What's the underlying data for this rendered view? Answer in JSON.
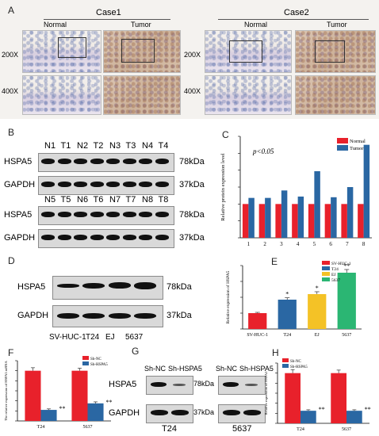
{
  "panelA": {
    "letter": "A",
    "case1": "Case1",
    "case2": "Case2",
    "normal": "Normal",
    "tumor": "Tumor",
    "mag200": "200X",
    "mag400": "400X"
  },
  "panelB": {
    "letter": "B",
    "row1_lanes": [
      "N1",
      "T1",
      "N2",
      "T2",
      "N3",
      "T3",
      "N4",
      "T4"
    ],
    "row2_lanes": [
      "N5",
      "T5",
      "N6",
      "T6",
      "N7",
      "T7",
      "N8",
      "T8"
    ],
    "hspa5": "HSPA5",
    "gapdh": "GAPDH",
    "kda78": "78kDa",
    "kda37": "37kDa"
  },
  "panelC": {
    "letter": "C"
  },
  "panelD": {
    "letter": "D",
    "hspa5": "HSPA5",
    "gapdh": "GAPDH",
    "kda78": "78kDa",
    "kda37": "37kDa",
    "lanes": [
      "SV-HUC-1",
      "T24",
      "EJ",
      "5637"
    ]
  },
  "panelE": {
    "letter": "E"
  },
  "panelF": {
    "letter": "F"
  },
  "panelG": {
    "letter": "G",
    "shnc": "Sh-NC",
    "shhspa5": "Sh-HSPA5",
    "hspa5": "HSPA5",
    "gapdh": "GAPDH",
    "kda78": "78kDa",
    "kda37": "37kDa",
    "t24": "T24",
    "c5637": "5637"
  },
  "panelH": {
    "letter": "H"
  },
  "chart_data": [
    {
      "id": "C",
      "type": "bar",
      "categories": [
        "1",
        "2",
        "3",
        "4",
        "5",
        "6",
        "7",
        "8"
      ],
      "series": [
        {
          "name": "Normal",
          "color": "#e8212b",
          "values": [
            1,
            1,
            1,
            1,
            1,
            1,
            1,
            1
          ]
        },
        {
          "name": "Tumor",
          "color": "#2a67a3",
          "values": [
            1.18,
            1.18,
            1.4,
            1.22,
            1.97,
            1.2,
            1.5,
            2.75
          ]
        }
      ],
      "ylabel": "Relative protein expression level",
      "annotation": "p<0.05",
      "ylim": [
        0,
        3
      ],
      "yticks": [
        0,
        0.5,
        1,
        1.5,
        2,
        2.5,
        3
      ],
      "legend": "top-right"
    },
    {
      "id": "E",
      "type": "bar",
      "categories": [
        "SV-HUC-1",
        "T24",
        "EJ",
        "5637"
      ],
      "values": [
        1.0,
        1.85,
        2.2,
        3.55
      ],
      "errors": [
        0.05,
        0.12,
        0.15,
        0.2
      ],
      "colors": [
        "#e8212b",
        "#2a67a3",
        "#f4c226",
        "#2bb673"
      ],
      "significance": [
        "",
        "*",
        "*",
        "**"
      ],
      "legend_entries": [
        "SV-HUC-1",
        "T24",
        "EJ",
        "5637"
      ],
      "ylabel": "Relative expression of HSPA5",
      "ylim": [
        0,
        4
      ],
      "yticks": [
        0,
        1,
        2,
        3,
        4
      ],
      "legend": "top-left"
    },
    {
      "id": "F",
      "type": "bar",
      "categories": [
        "T24",
        "5637"
      ],
      "series": [
        {
          "name": "Sh-NC",
          "color": "#e8212b",
          "values": [
            1.0,
            1.0
          ],
          "errors": [
            0.06,
            0.05
          ]
        },
        {
          "name": "Sh-HSPA5",
          "color": "#2a67a3",
          "values": [
            0.22,
            0.35
          ],
          "errors": [
            0.02,
            0.03
          ]
        }
      ],
      "significance": [
        "**",
        "**"
      ],
      "ylabel": "The relative expression of HSPA5 mRNA",
      "ylim": [
        0,
        1.2
      ],
      "yticks": [
        0,
        0.2,
        0.4,
        0.6,
        0.8,
        1,
        1.2
      ],
      "legend": "top-right"
    },
    {
      "id": "H",
      "type": "bar",
      "categories": [
        "T24",
        "5637"
      ],
      "series": [
        {
          "name": "Sh-NC",
          "color": "#e8212b",
          "values": [
            1.0,
            1.0
          ],
          "errors": [
            0.07,
            0.06
          ]
        },
        {
          "name": "Sh-HSPA5",
          "color": "#2a67a3",
          "values": [
            0.25,
            0.25
          ],
          "errors": [
            0.02,
            0.02
          ]
        }
      ],
      "significance": [
        "**",
        "**"
      ],
      "ylabel": "Relative expression of HSPA5",
      "ylim": [
        0,
        1.2
      ],
      "yticks": [
        0,
        0.2,
        0.4,
        0.6,
        0.8,
        1,
        1.2
      ],
      "legend": "top-left"
    }
  ]
}
